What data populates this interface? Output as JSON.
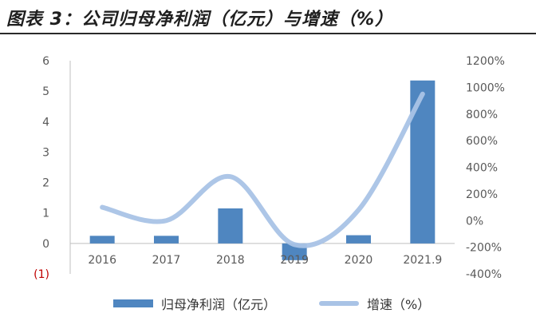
{
  "title": "图表 3：公司归母净利润（亿元）与增速（%）",
  "chart_data": {
    "type": "bar",
    "categories": [
      "2016",
      "2017",
      "2018",
      "2019",
      "2020",
      "2021.9"
    ],
    "series": [
      {
        "name": "归母净利润（亿元）",
        "type": "bar",
        "axis": "left",
        "values": [
          0.25,
          0.25,
          1.15,
          -0.55,
          0.27,
          5.35
        ]
      },
      {
        "name": "增速（%）",
        "type": "line",
        "axis": "right",
        "values": [
          100,
          0,
          330,
          -180,
          80,
          950
        ]
      }
    ],
    "y_left": {
      "ylim": [
        -1,
        6
      ],
      "ticks": [
        "(1)",
        "0",
        "1",
        "2",
        "3",
        "4",
        "5",
        "6"
      ]
    },
    "y_right": {
      "ylim": [
        -400,
        1200
      ],
      "ticks": [
        "-400%",
        "-200%",
        "0%",
        "200%",
        "400%",
        "600%",
        "800%",
        "1000%",
        "1200%"
      ]
    },
    "legend_position": "bottom",
    "grid": false,
    "colors": {
      "bar": "#4f86c0",
      "line": "#a9c3e6",
      "negative_tick": "#c00000"
    }
  }
}
